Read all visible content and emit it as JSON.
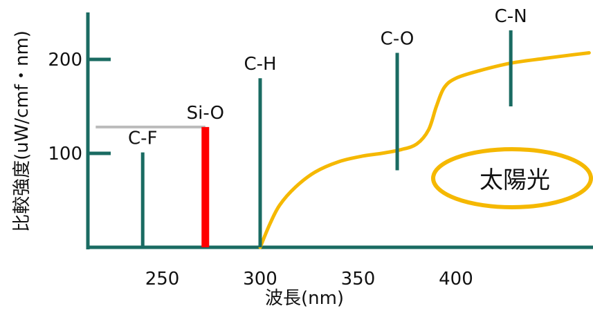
{
  "chart_data": {
    "type": "bar",
    "title": "",
    "xlabel": "波長(nm)",
    "ylabel": "比較強度(uW/cmf・nm)",
    "xlim": [
      212,
      470
    ],
    "ylim": [
      0,
      250
    ],
    "x_ticks": [
      {
        "value": 250,
        "label": "250"
      },
      {
        "value": 300,
        "label": "300"
      },
      {
        "value": 350,
        "label": "350"
      },
      {
        "value": 400,
        "label": "400"
      }
    ],
    "y_ticks": [
      {
        "value": 100,
        "label": "100"
      },
      {
        "value": 200,
        "label": "200"
      }
    ],
    "bonds": [
      {
        "label": "C-F",
        "x": 240,
        "y_bottom": 0,
        "y_top": 101,
        "color": "#1a6b62"
      },
      {
        "label": "Si-O",
        "x": 272,
        "y_bottom": 0,
        "y_top": 128,
        "color": "#ff0000",
        "highlight": true
      },
      {
        "label": "C-H",
        "x": 300,
        "y_bottom": 0,
        "y_top": 180,
        "color": "#1a6b62"
      },
      {
        "label": "C-O",
        "x": 370,
        "y_bottom": 82,
        "y_top": 207,
        "color": "#1a6b62"
      },
      {
        "label": "C-N",
        "x": 428,
        "y_bottom": 150,
        "y_top": 231,
        "color": "#1a6b62"
      }
    ],
    "reference_line": {
      "x_start": 216,
      "x_end": 272,
      "y": 128,
      "color": "#bbbbbb"
    },
    "series": [
      {
        "name": "",
        "type": "line",
        "color": "#f5b800",
        "points": [
          [
            300,
            0
          ],
          [
            305,
            25
          ],
          [
            310,
            45
          ],
          [
            318,
            64
          ],
          [
            328,
            80
          ],
          [
            340,
            91
          ],
          [
            352,
            97
          ],
          [
            362,
            100
          ],
          [
            372,
            104
          ],
          [
            380,
            110
          ],
          [
            386,
            125
          ],
          [
            390,
            150
          ],
          [
            394,
            170
          ],
          [
            400,
            180
          ],
          [
            412,
            188
          ],
          [
            428,
            196
          ],
          [
            445,
            201
          ],
          [
            460,
            205
          ],
          [
            468,
            207
          ]
        ]
      }
    ],
    "annotation": {
      "text": "太陽光",
      "shape": "ellipse",
      "color": "#f5b800"
    },
    "axis_color": "#1a6b62",
    "grid": false
  }
}
